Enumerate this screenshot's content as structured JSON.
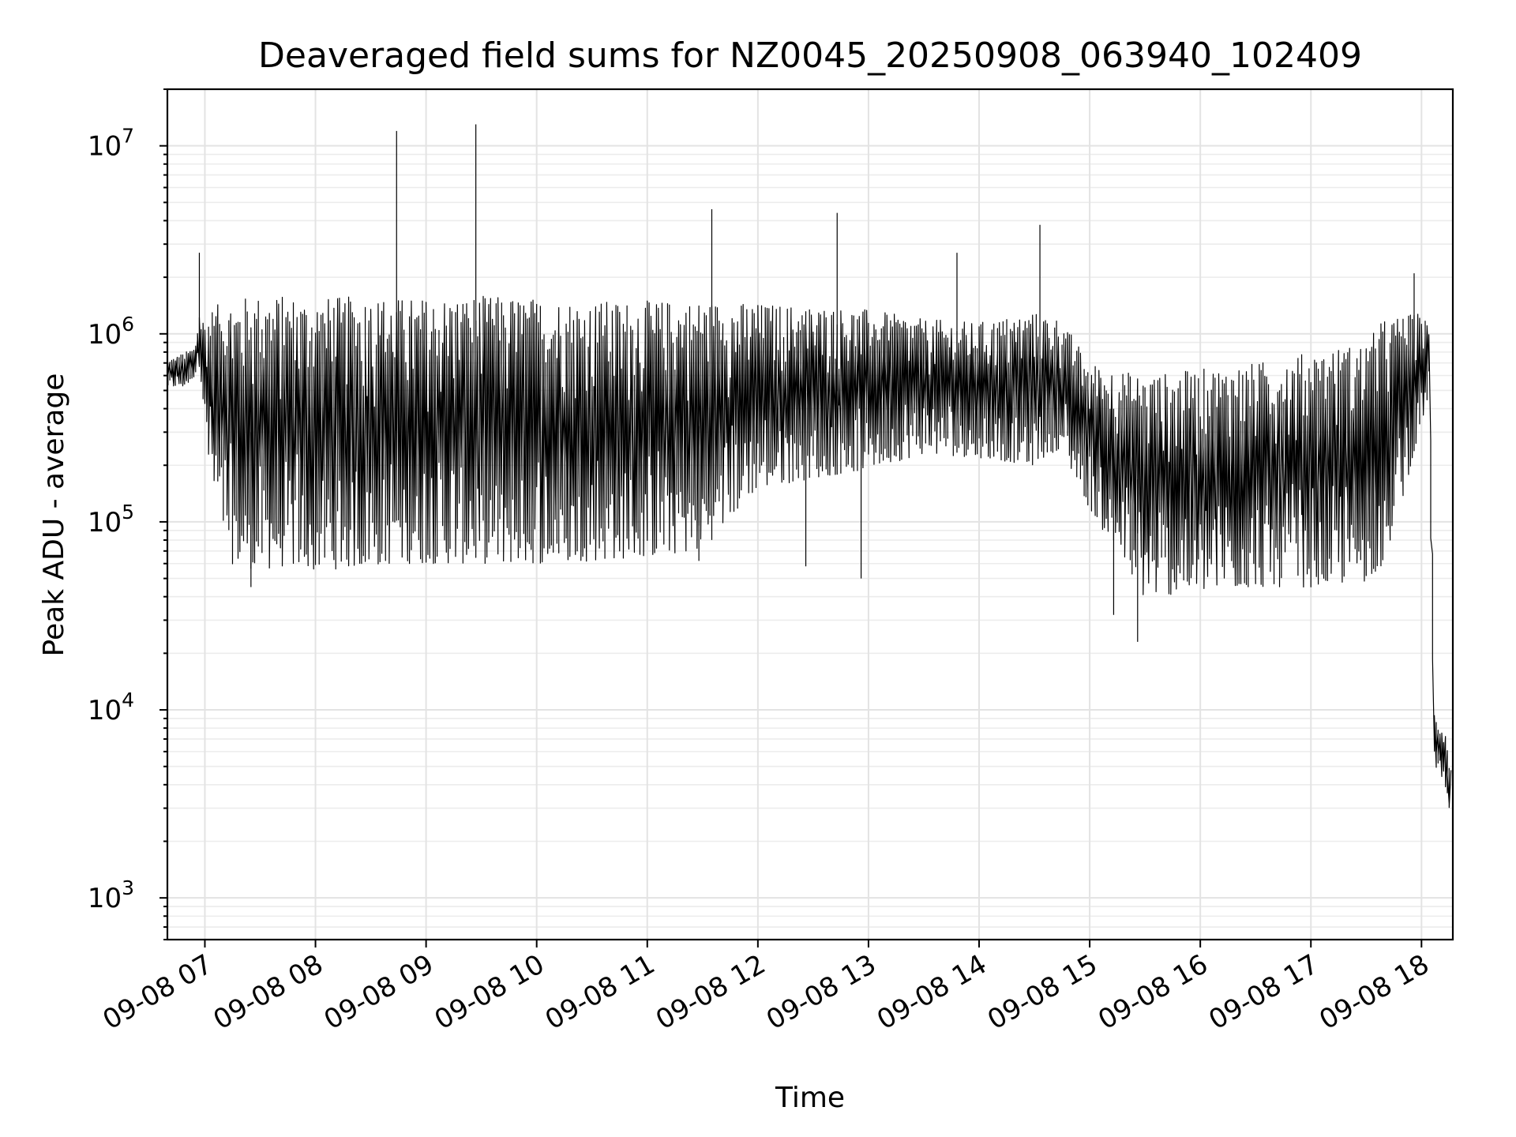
{
  "chart_data": {
    "type": "line",
    "title": "Deaveraged field sums for NZ0045_20250908_063940_102409",
    "xlabel": "Time",
    "ylabel": "Peak ADU - average",
    "x_axis_kind": "datetime",
    "xlim": [
      "2025-09-08 06:39:40",
      "2025-09-08 18:17:00"
    ],
    "x_ticks": [
      {
        "value": "2025-09-08 07:00",
        "label": "09-08 07"
      },
      {
        "value": "2025-09-08 08:00",
        "label": "09-08 08"
      },
      {
        "value": "2025-09-08 09:00",
        "label": "09-08 09"
      },
      {
        "value": "2025-09-08 10:00",
        "label": "09-08 10"
      },
      {
        "value": "2025-09-08 11:00",
        "label": "09-08 11"
      },
      {
        "value": "2025-09-08 12:00",
        "label": "09-08 12"
      },
      {
        "value": "2025-09-08 13:00",
        "label": "09-08 13"
      },
      {
        "value": "2025-09-08 14:00",
        "label": "09-08 14"
      },
      {
        "value": "2025-09-08 15:00",
        "label": "09-08 15"
      },
      {
        "value": "2025-09-08 16:00",
        "label": "09-08 16"
      },
      {
        "value": "2025-09-08 17:00",
        "label": "09-08 17"
      },
      {
        "value": "2025-09-08 18:00",
        "label": "09-08 18"
      }
    ],
    "y_scale": "log",
    "ylim": [
      600,
      20000000
    ],
    "y_ticks": [
      {
        "value": 1000,
        "base": "10",
        "exp": "3"
      },
      {
        "value": 10000,
        "base": "10",
        "exp": "4"
      },
      {
        "value": 100000,
        "base": "10",
        "exp": "5"
      },
      {
        "value": 1000000,
        "base": "10",
        "exp": "6"
      },
      {
        "value": 10000000,
        "base": "10",
        "exp": "7"
      }
    ],
    "grid": true,
    "line_color": "#000000",
    "series": [
      {
        "x": [
          "2025-09-08 06:40",
          "2025-09-08 06:50",
          "2025-09-08 06:55",
          "2025-09-08 06:58",
          "2025-09-08 07:00",
          "2025-09-08 07:05",
          "2025-09-08 07:15",
          "2025-09-08 07:30",
          "2025-09-08 07:45",
          "2025-09-08 08:00",
          "2025-09-08 08:30",
          "2025-09-08 08:45",
          "2025-09-08 09:00",
          "2025-09-08 09:30",
          "2025-09-08 10:00",
          "2025-09-08 10:30",
          "2025-09-08 11:00",
          "2025-09-08 11:30",
          "2025-09-08 12:00",
          "2025-09-08 12:30",
          "2025-09-08 13:00",
          "2025-09-08 13:30",
          "2025-09-08 14:00",
          "2025-09-08 14:30",
          "2025-09-08 14:45",
          "2025-09-08 15:00",
          "2025-09-08 15:30",
          "2025-09-08 16:00",
          "2025-09-08 16:30",
          "2025-09-08 17:00",
          "2025-09-08 17:30",
          "2025-09-08 17:40",
          "2025-09-08 18:00",
          "2025-09-08 18:05",
          "2025-09-08 18:07",
          "2025-09-08 18:10",
          "2025-09-08 18:13",
          "2025-09-08 18:16"
        ],
        "min": [
          520000,
          520000,
          600000,
          700000,
          350000,
          130000,
          60000,
          55000,
          58000,
          55000,
          58000,
          60000,
          60000,
          60000,
          60000,
          62000,
          65000,
          70000,
          150000,
          170000,
          190000,
          230000,
          220000,
          200000,
          250000,
          120000,
          40000,
          42000,
          45000,
          45000,
          48000,
          60000,
          300000,
          500000,
          5000,
          4000,
          4500,
          2000
        ],
        "max": [
          720000,
          800000,
          850000,
          1300000,
          1200000,
          1400000,
          1550000,
          1600000,
          1600000,
          1550000,
          1600000,
          1550000,
          1550000,
          1600000,
          1550000,
          1500000,
          1500000,
          1500000,
          1450000,
          1400000,
          1350000,
          1200000,
          1150000,
          1300000,
          1200000,
          700000,
          600000,
          650000,
          700000,
          800000,
          900000,
          1200000,
          1300000,
          1100000,
          10000,
          9000,
          8000,
          5000
        ],
        "spikes": [
          {
            "x": "2025-09-08 06:57",
            "y": 2700000
          },
          {
            "x": "2025-09-08 08:44",
            "y": 12000000
          },
          {
            "x": "2025-09-08 09:27",
            "y": 13000000
          },
          {
            "x": "2025-09-08 11:35",
            "y": 4600000
          },
          {
            "x": "2025-09-08 12:43",
            "y": 4400000
          },
          {
            "x": "2025-09-08 13:48",
            "y": 2700000
          },
          {
            "x": "2025-09-08 14:33",
            "y": 3800000
          },
          {
            "x": "2025-09-08 17:56",
            "y": 2100000
          }
        ],
        "dips": [
          {
            "x": "2025-09-08 07:25",
            "y": 45000
          },
          {
            "x": "2025-09-08 11:28",
            "y": 62000
          },
          {
            "x": "2025-09-08 12:26",
            "y": 58000
          },
          {
            "x": "2025-09-08 12:56",
            "y": 50000
          },
          {
            "x": "2025-09-08 15:13",
            "y": 32000
          },
          {
            "x": "2025-09-08 15:26",
            "y": 23000
          }
        ]
      }
    ]
  }
}
